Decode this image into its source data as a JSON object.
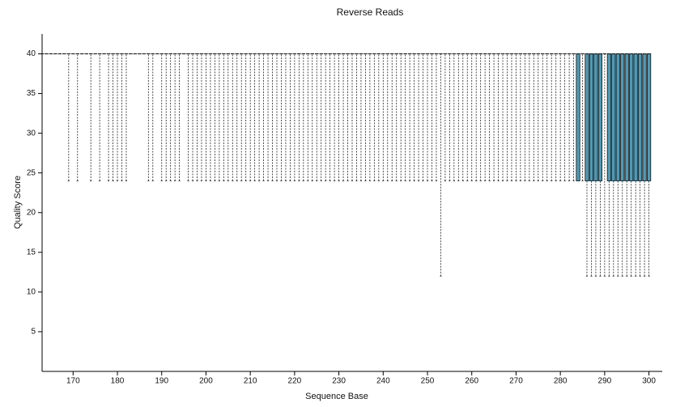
{
  "chart_data": {
    "type": "boxplot",
    "title": "Reverse Reads",
    "x_label": "Sequence Base",
    "y_label": "Quality Score",
    "box_color": "#4f9ab5",
    "x": [
      163,
      164,
      165,
      166,
      167,
      168,
      169,
      170,
      171,
      172,
      173,
      174,
      175,
      176,
      177,
      178,
      179,
      180,
      181,
      182,
      183,
      184,
      185,
      186,
      187,
      188,
      189,
      190,
      191,
      192,
      193,
      194,
      195,
      196,
      197,
      198,
      199,
      200,
      201,
      202,
      203,
      204,
      205,
      206,
      207,
      208,
      209,
      210,
      211,
      212,
      213,
      214,
      215,
      216,
      217,
      218,
      219,
      220,
      221,
      222,
      223,
      224,
      225,
      226,
      227,
      228,
      229,
      230,
      231,
      232,
      233,
      234,
      235,
      236,
      237,
      238,
      239,
      240,
      241,
      242,
      243,
      244,
      245,
      246,
      247,
      248,
      249,
      250,
      251,
      252,
      253,
      254,
      255,
      256,
      257,
      258,
      259,
      260,
      261,
      262,
      263,
      264,
      265,
      266,
      267,
      268,
      269,
      270,
      271,
      272,
      273,
      274,
      275,
      276,
      277,
      278,
      279,
      280,
      281,
      282,
      283,
      284,
      285,
      286,
      287,
      288,
      289,
      290,
      291,
      292,
      293,
      294,
      295,
      296,
      297,
      298,
      299,
      300
    ],
    "min": [
      40,
      40,
      40,
      40,
      40,
      40,
      24,
      40,
      24,
      40,
      40,
      24,
      40,
      24,
      40,
      24,
      24,
      24,
      24,
      24,
      40,
      40,
      40,
      40,
      24,
      24,
      40,
      24,
      24,
      24,
      24,
      24,
      40,
      24,
      24,
      24,
      24,
      24,
      24,
      24,
      24,
      24,
      24,
      24,
      24,
      24,
      24,
      24,
      24,
      24,
      24,
      24,
      24,
      24,
      24,
      24,
      24,
      24,
      24,
      24,
      24,
      24,
      24,
      24,
      24,
      24,
      24,
      24,
      24,
      24,
      24,
      24,
      24,
      24,
      24,
      24,
      24,
      24,
      24,
      24,
      24,
      24,
      24,
      24,
      24,
      24,
      24,
      24,
      24,
      24,
      12,
      24,
      24,
      24,
      24,
      24,
      24,
      24,
      24,
      24,
      24,
      24,
      24,
      24,
      24,
      24,
      24,
      24,
      24,
      24,
      24,
      24,
      24,
      24,
      24,
      24,
      24,
      24,
      24,
      24,
      24,
      24,
      24,
      12,
      12,
      12,
      12,
      12,
      12,
      12,
      12,
      12,
      12,
      12,
      12,
      12,
      12,
      12
    ],
    "q1": [
      40,
      40,
      40,
      40,
      40,
      40,
      40,
      40,
      40,
      40,
      40,
      40,
      40,
      40,
      40,
      40,
      40,
      40,
      40,
      40,
      40,
      40,
      40,
      40,
      40,
      40,
      40,
      40,
      40,
      40,
      40,
      40,
      40,
      40,
      40,
      40,
      40,
      40,
      40,
      40,
      40,
      40,
      40,
      40,
      40,
      40,
      40,
      40,
      40,
      40,
      40,
      40,
      40,
      40,
      40,
      40,
      40,
      40,
      40,
      40,
      40,
      40,
      40,
      40,
      40,
      40,
      40,
      40,
      40,
      40,
      40,
      40,
      40,
      40,
      40,
      40,
      40,
      40,
      40,
      40,
      40,
      40,
      40,
      40,
      40,
      40,
      40,
      40,
      40,
      40,
      40,
      40,
      40,
      40,
      40,
      40,
      40,
      40,
      40,
      40,
      40,
      40,
      40,
      40,
      40,
      40,
      40,
      40,
      40,
      40,
      40,
      40,
      40,
      40,
      40,
      40,
      40,
      40,
      40,
      40,
      40,
      24,
      40,
      24,
      24,
      24,
      24,
      40,
      24,
      24,
      24,
      24,
      24,
      24,
      24,
      24,
      24,
      24
    ],
    "median": [
      40,
      40,
      40,
      40,
      40,
      40,
      40,
      40,
      40,
      40,
      40,
      40,
      40,
      40,
      40,
      40,
      40,
      40,
      40,
      40,
      40,
      40,
      40,
      40,
      40,
      40,
      40,
      40,
      40,
      40,
      40,
      40,
      40,
      40,
      40,
      40,
      40,
      40,
      40,
      40,
      40,
      40,
      40,
      40,
      40,
      40,
      40,
      40,
      40,
      40,
      40,
      40,
      40,
      40,
      40,
      40,
      40,
      40,
      40,
      40,
      40,
      40,
      40,
      40,
      40,
      40,
      40,
      40,
      40,
      40,
      40,
      40,
      40,
      40,
      40,
      40,
      40,
      40,
      40,
      40,
      40,
      40,
      40,
      40,
      40,
      40,
      40,
      40,
      40,
      40,
      40,
      40,
      40,
      40,
      40,
      40,
      40,
      40,
      40,
      40,
      40,
      40,
      40,
      40,
      40,
      40,
      40,
      40,
      40,
      40,
      40,
      40,
      40,
      40,
      40,
      40,
      40,
      40,
      40,
      40,
      40,
      40,
      40,
      40,
      40,
      40,
      40,
      40,
      40,
      40,
      40,
      40,
      40,
      40,
      40,
      40,
      40,
      40
    ],
    "q3": [
      40,
      40,
      40,
      40,
      40,
      40,
      40,
      40,
      40,
      40,
      40,
      40,
      40,
      40,
      40,
      40,
      40,
      40,
      40,
      40,
      40,
      40,
      40,
      40,
      40,
      40,
      40,
      40,
      40,
      40,
      40,
      40,
      40,
      40,
      40,
      40,
      40,
      40,
      40,
      40,
      40,
      40,
      40,
      40,
      40,
      40,
      40,
      40,
      40,
      40,
      40,
      40,
      40,
      40,
      40,
      40,
      40,
      40,
      40,
      40,
      40,
      40,
      40,
      40,
      40,
      40,
      40,
      40,
      40,
      40,
      40,
      40,
      40,
      40,
      40,
      40,
      40,
      40,
      40,
      40,
      40,
      40,
      40,
      40,
      40,
      40,
      40,
      40,
      40,
      40,
      40,
      40,
      40,
      40,
      40,
      40,
      40,
      40,
      40,
      40,
      40,
      40,
      40,
      40,
      40,
      40,
      40,
      40,
      40,
      40,
      40,
      40,
      40,
      40,
      40,
      40,
      40,
      40,
      40,
      40,
      40,
      40,
      40,
      40,
      40,
      40,
      40,
      40,
      40,
      40,
      40,
      40,
      40,
      40,
      40,
      40,
      40,
      40
    ],
    "max": [
      40,
      40,
      40,
      40,
      40,
      40,
      40,
      40,
      40,
      40,
      40,
      40,
      40,
      40,
      40,
      40,
      40,
      40,
      40,
      40,
      40,
      40,
      40,
      40,
      40,
      40,
      40,
      40,
      40,
      40,
      40,
      40,
      40,
      40,
      40,
      40,
      40,
      40,
      40,
      40,
      40,
      40,
      40,
      40,
      40,
      40,
      40,
      40,
      40,
      40,
      40,
      40,
      40,
      40,
      40,
      40,
      40,
      40,
      40,
      40,
      40,
      40,
      40,
      40,
      40,
      40,
      40,
      40,
      40,
      40,
      40,
      40,
      40,
      40,
      40,
      40,
      40,
      40,
      40,
      40,
      40,
      40,
      40,
      40,
      40,
      40,
      40,
      40,
      40,
      40,
      40,
      40,
      40,
      40,
      40,
      40,
      40,
      40,
      40,
      40,
      40,
      40,
      40,
      40,
      40,
      40,
      40,
      40,
      40,
      40,
      40,
      40,
      40,
      40,
      40,
      40,
      40,
      40,
      40,
      40,
      40,
      40,
      40,
      40,
      40,
      40,
      40,
      40,
      40,
      40,
      40,
      40,
      40,
      40,
      40,
      40,
      40,
      40
    ],
    "xlim": [
      163,
      303
    ],
    "xticks": [
      170,
      180,
      190,
      200,
      210,
      220,
      230,
      240,
      250,
      260,
      270,
      280,
      290,
      300
    ],
    "ylim": [
      0,
      42.5
    ],
    "yticks": [
      5,
      10,
      15,
      20,
      25,
      30,
      35,
      40
    ]
  }
}
